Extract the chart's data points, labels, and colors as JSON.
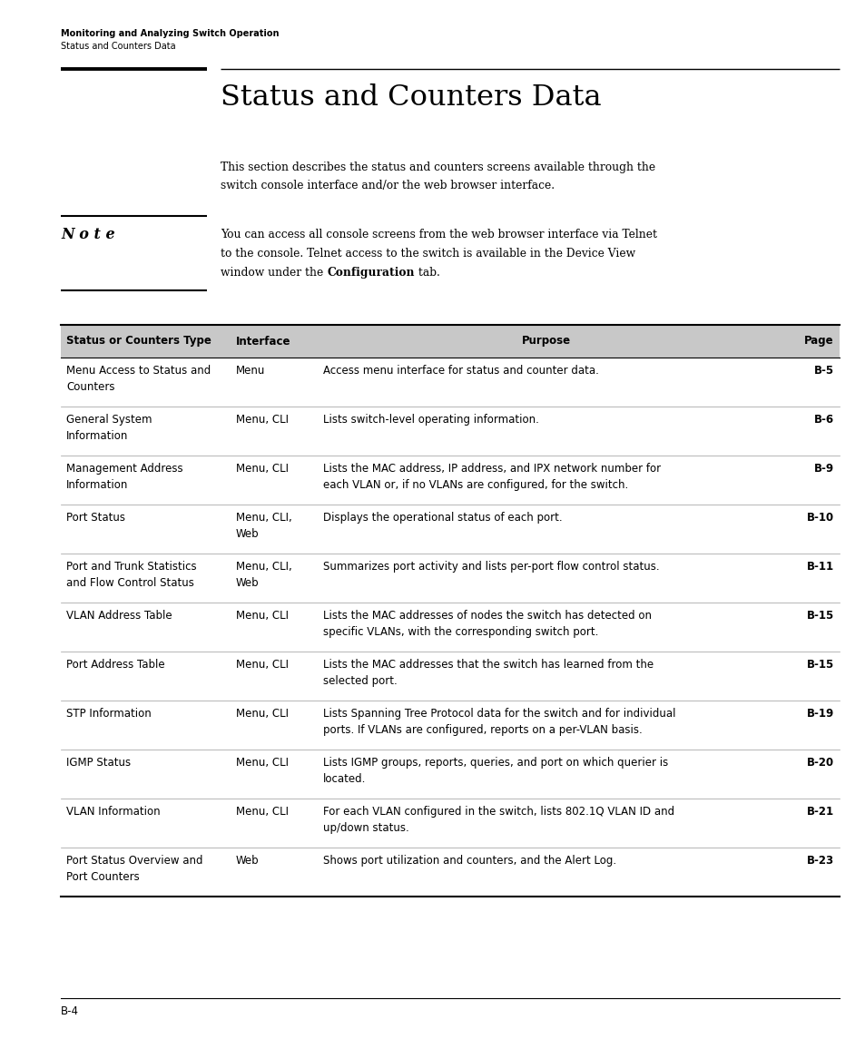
{
  "page_bg": "#ffffff",
  "header_bold": "Monitoring and Analyzing Switch Operation",
  "header_normal": "Status and Counters Data",
  "section_title": "Status and Counters Data",
  "intro_line1": "This section describes the status and counters screens available through the",
  "intro_line2": "switch console interface and/or the web browser interface.",
  "note_label": "N o t e",
  "note_line1": "You can access all console screens from the web browser interface via Telnet",
  "note_line2": "to the console. Telnet access to the switch is available in the Device View",
  "note_line3_pre": "window under the ",
  "note_line3_bold": "Configuration",
  "note_line3_post": " tab.",
  "table_header": [
    "Status or Counters Type",
    "Interface",
    "Purpose",
    "Page"
  ],
  "table_header_bg": "#c8c8c8",
  "table_rows": [
    {
      "type": "Menu Access to Status and\nCounters",
      "interface": "Menu",
      "purpose_lines": [
        "Access menu interface for status and counter data."
      ],
      "page": "B-5",
      "row_lines": 2
    },
    {
      "type": "General System\nInformation",
      "interface": "Menu, CLI",
      "purpose_lines": [
        "Lists switch-level operating information."
      ],
      "page": "B-6",
      "row_lines": 2
    },
    {
      "type": "Management Address\nInformation",
      "interface": "Menu, CLI",
      "purpose_lines": [
        "Lists the MAC address, IP address, and IPX network number for",
        "each VLAN or, if no VLANs are configured, for the switch."
      ],
      "page": "B-9",
      "row_lines": 2
    },
    {
      "type": "Port Status",
      "interface": "Menu, CLI,\nWeb",
      "purpose_lines": [
        "Displays the operational status of each port."
      ],
      "page": "B-10",
      "row_lines": 2
    },
    {
      "type": "Port and Trunk Statistics\nand Flow Control Status",
      "interface": "Menu, CLI,\nWeb",
      "purpose_lines": [
        "Summarizes port activity and lists per-port flow control status."
      ],
      "page": "B-11",
      "row_lines": 2
    },
    {
      "type": "VLAN Address Table",
      "interface": "Menu, CLI",
      "purpose_lines": [
        "Lists the MAC addresses of nodes the switch has detected on",
        "specific VLANs, with the corresponding switch port."
      ],
      "page": "B-15",
      "row_lines": 2
    },
    {
      "type": "Port Address Table",
      "interface": "Menu, CLI",
      "purpose_lines": [
        "Lists the MAC addresses that the switch has learned from the",
        "selected port."
      ],
      "page": "B-15",
      "row_lines": 2
    },
    {
      "type": "STP Information",
      "interface": "Menu, CLI",
      "purpose_lines": [
        "Lists Spanning Tree Protocol data for the switch and for individual",
        "ports. If VLANs are configured, reports on a per-VLAN basis."
      ],
      "page": "B-19",
      "row_lines": 2
    },
    {
      "type": "IGMP Status",
      "interface": "Menu, CLI",
      "purpose_lines": [
        "Lists IGMP groups, reports, queries, and port on which querier is",
        "located."
      ],
      "page": "B-20",
      "row_lines": 2
    },
    {
      "type": "VLAN Information",
      "interface": "Menu, CLI",
      "purpose_lines": [
        "For each VLAN configured in the switch, lists 802.1Q VLAN ID and",
        "up/down status."
      ],
      "page": "B-21",
      "row_lines": 2
    },
    {
      "type": "Port Status Overview and\nPort Counters",
      "interface": "Web",
      "purpose_lines": [
        "Shows port utilization and counters, and the Alert Log."
      ],
      "page": "B-23",
      "row_lines": 2
    }
  ],
  "footer_text": "B-4"
}
